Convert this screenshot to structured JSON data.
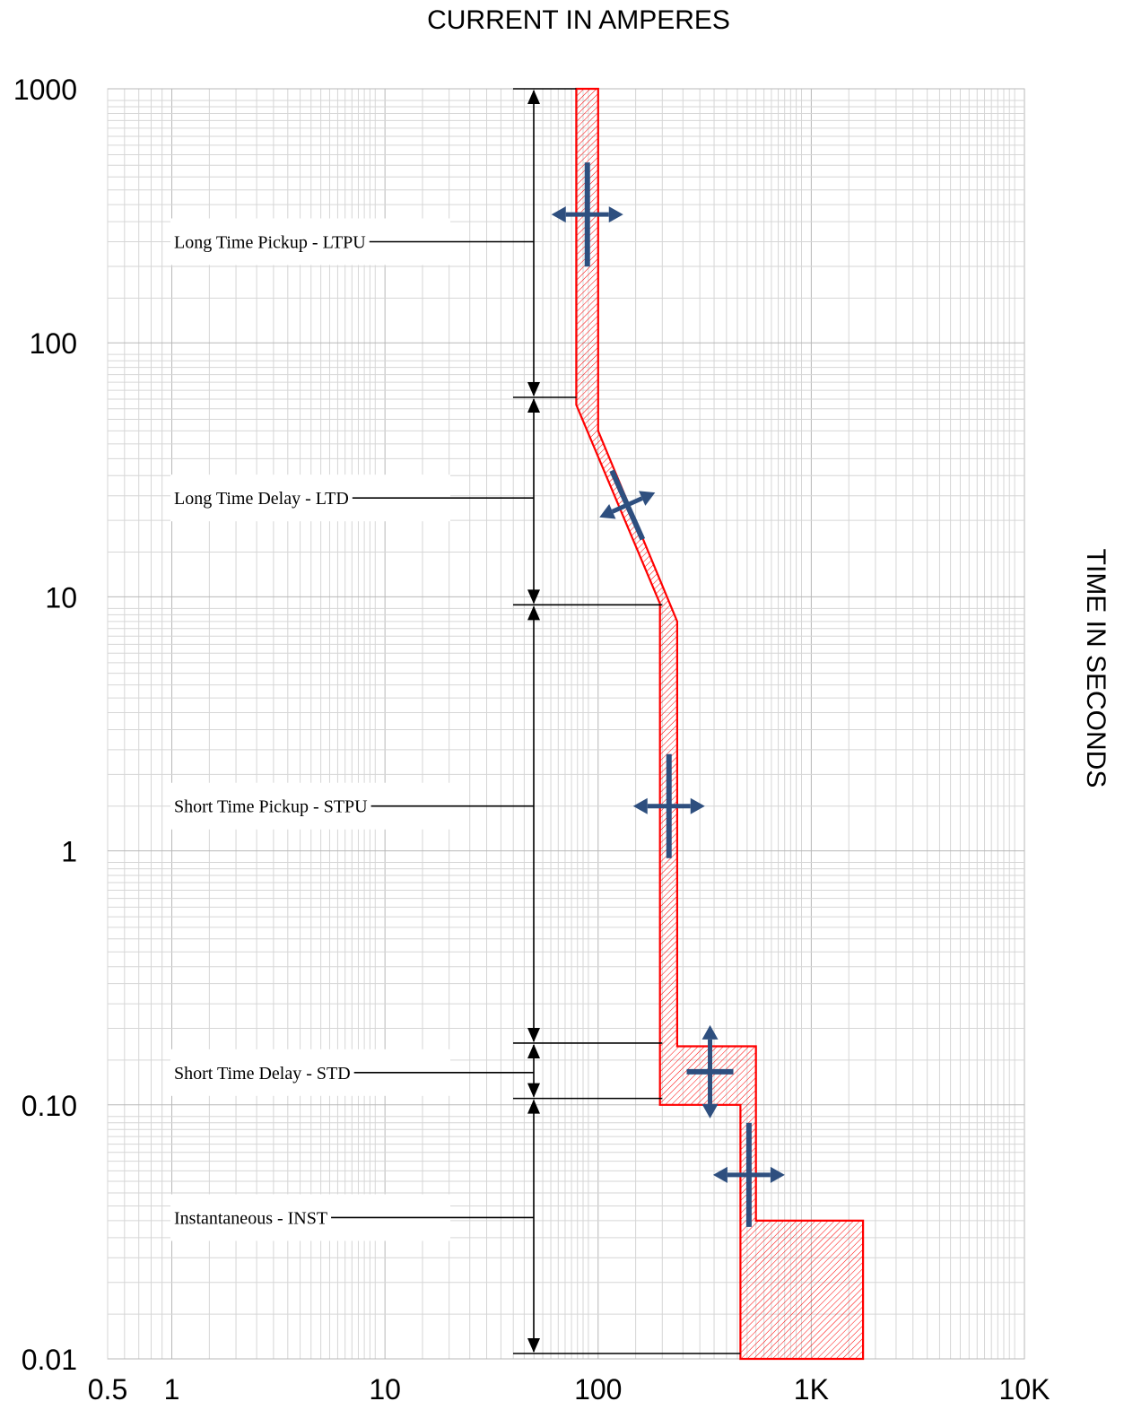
{
  "chart_data": {
    "type": "line",
    "title": "CURRENT IN AMPERES",
    "xlabel": "",
    "ylabel": "TIME IN SECONDS",
    "x_scale": "log",
    "y_scale": "log",
    "xlim": [
      0.5,
      10000
    ],
    "ylim": [
      0.01,
      1000
    ],
    "x_tick_labels": [
      {
        "value": 0.5,
        "label": "0.5"
      },
      {
        "value": 1,
        "label": "1"
      },
      {
        "value": 10,
        "label": "10"
      },
      {
        "value": 100,
        "label": "100"
      },
      {
        "value": 1000,
        "label": "1K"
      },
      {
        "value": 10000,
        "label": "10K"
      }
    ],
    "y_tick_labels": [
      {
        "value": 1000,
        "label": "1000"
      },
      {
        "value": 100,
        "label": "100"
      },
      {
        "value": 10,
        "label": "10"
      },
      {
        "value": 1,
        "label": "1"
      },
      {
        "value": 0.1,
        "label": "0.10"
      },
      {
        "value": 0.01,
        "label": "0.01"
      }
    ],
    "grid": true,
    "band_color": "#ff0000",
    "arrow_color": "#2e4f7f",
    "trip_band": {
      "left_edge": [
        {
          "x": 79,
          "y": 1000
        },
        {
          "x": 79,
          "y": 57
        },
        {
          "x": 195,
          "y": 9.4
        },
        {
          "x": 195,
          "y": 0.1
        },
        {
          "x": 465,
          "y": 0.1
        },
        {
          "x": 465,
          "y": 0.01
        }
      ],
      "right_edge": [
        {
          "x": 100,
          "y": 1000
        },
        {
          "x": 100,
          "y": 45
        },
        {
          "x": 235,
          "y": 8
        },
        {
          "x": 235,
          "y": 0.17
        },
        {
          "x": 550,
          "y": 0.17
        },
        {
          "x": 550,
          "y": 0.035
        },
        {
          "x": 1750,
          "y": 0.035
        },
        {
          "x": 1750,
          "y": 0.01
        }
      ]
    },
    "regions": [
      {
        "label": "Long Time Pickup - LTPU",
        "y_top": 1000,
        "y_bottom": 61,
        "label_y": 250,
        "line_end_x": 79
      },
      {
        "label": "Long Time Delay - LTD",
        "y_top": 61,
        "y_bottom": 9.3,
        "label_y": 24.5,
        "line_end_x": 200
      },
      {
        "label": "Short Time Pickup - STPU",
        "y_top": 9.3,
        "y_bottom": 0.175,
        "label_y": 1.5,
        "line_end_x": 200
      },
      {
        "label": "Short Time Delay - STD",
        "y_top": 0.175,
        "y_bottom": 0.106,
        "label_y": 0.134,
        "line_end_x": 200
      },
      {
        "label": "Instantaneous - INST",
        "y_top": 0.106,
        "y_bottom": 0.0105,
        "label_y": 0.036,
        "line_end_x": 465
      }
    ],
    "adjustment_arrows": [
      {
        "name": "ltpu-adjust",
        "x": 89,
        "y": 320,
        "direction": "horizontal"
      },
      {
        "name": "ltd-adjust",
        "x": 137,
        "y": 23,
        "direction": "diagonal"
      },
      {
        "name": "stpu-adjust",
        "x": 215,
        "y": 1.5,
        "direction": "horizontal"
      },
      {
        "name": "std-adjust",
        "x": 335,
        "y": 0.135,
        "direction": "vertical"
      },
      {
        "name": "inst-adjust",
        "x": 510,
        "y": 0.053,
        "direction": "horizontal"
      }
    ]
  }
}
